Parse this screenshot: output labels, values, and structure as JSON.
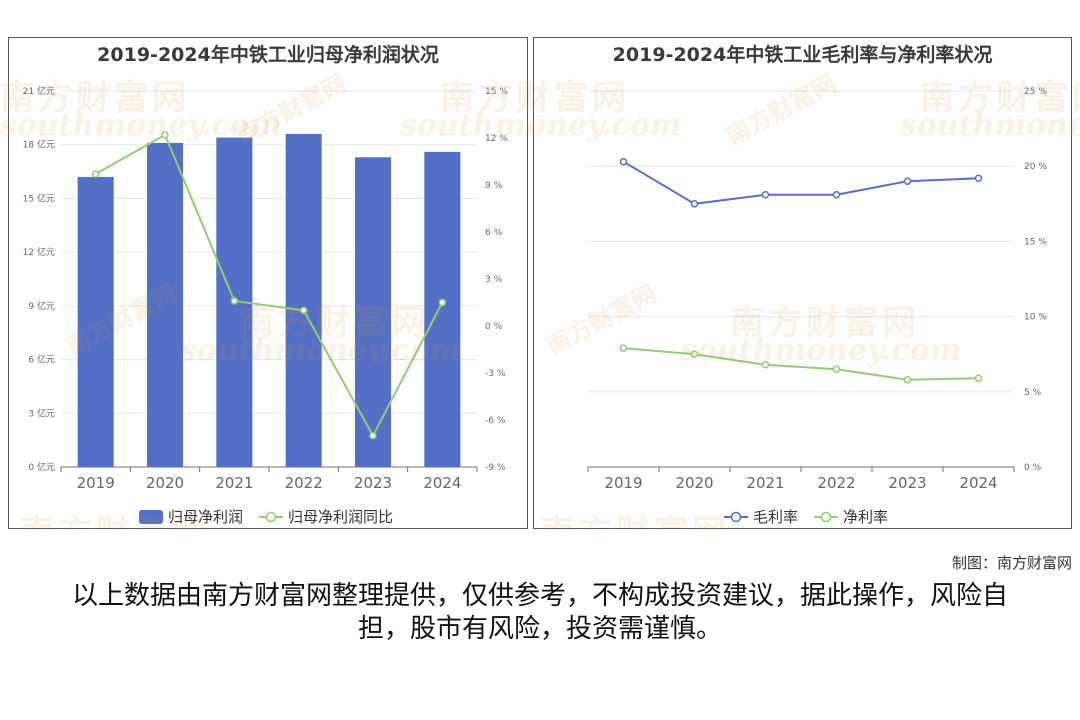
{
  "footer": {
    "credit": "制图：南方财富网",
    "disclaimer": "以上数据由南方财富网整理提供，仅供参考，不构成投资建议，据此操作，风险自担，股市有风险，投资需谨慎。"
  },
  "watermark": {
    "brand": "南方财富网",
    "url": "southmoney.com"
  },
  "colors": {
    "bar": "#5470c6",
    "line_green": "#91cc75",
    "line_blue": "#5470c6",
    "axis_text": "#666666"
  },
  "chart_data": [
    {
      "type": "bar",
      "title": "2019-2024年中铁工业归母净利润状况",
      "categories": [
        "2019",
        "2020",
        "2021",
        "2022",
        "2023",
        "2024"
      ],
      "y_left": {
        "ticks": [
          "0 亿元",
          "3 亿元",
          "6 亿元",
          "9 亿元",
          "12 亿元",
          "15 亿元",
          "18 亿元",
          "21 亿元"
        ],
        "ylim": [
          0,
          21
        ]
      },
      "y_right": {
        "ticks": [
          "-9 %",
          "-6 %",
          "-3 %",
          "0 %",
          "3 %",
          "6 %",
          "9 %",
          "12 %",
          "15 %"
        ],
        "ylim": [
          -9,
          15
        ]
      },
      "series": [
        {
          "name": "归母净利润",
          "kind": "bar",
          "axis": "left",
          "values": [
            16.2,
            18.1,
            18.4,
            18.6,
            17.3,
            17.6
          ]
        },
        {
          "name": "归母净利润同比",
          "kind": "line",
          "axis": "right",
          "values": [
            9.7,
            12.2,
            1.6,
            1.0,
            -7.0,
            1.5
          ]
        }
      ],
      "legend": "bottom",
      "grid": true
    },
    {
      "type": "line",
      "title": "2019-2024年中铁工业毛利率与净利率状况",
      "categories": [
        "2019",
        "2020",
        "2021",
        "2022",
        "2023",
        "2024"
      ],
      "y_right": {
        "ticks": [
          "0 %",
          "5 %",
          "10 %",
          "15 %",
          "20 %",
          "25 %"
        ],
        "ylim": [
          0,
          25
        ]
      },
      "series": [
        {
          "name": "毛利率",
          "values": [
            20.3,
            17.5,
            18.1,
            18.1,
            19.0,
            19.2
          ]
        },
        {
          "name": "净利率",
          "values": [
            7.9,
            7.5,
            6.8,
            6.5,
            5.8,
            5.9
          ]
        }
      ],
      "legend": "bottom",
      "grid": true
    }
  ]
}
